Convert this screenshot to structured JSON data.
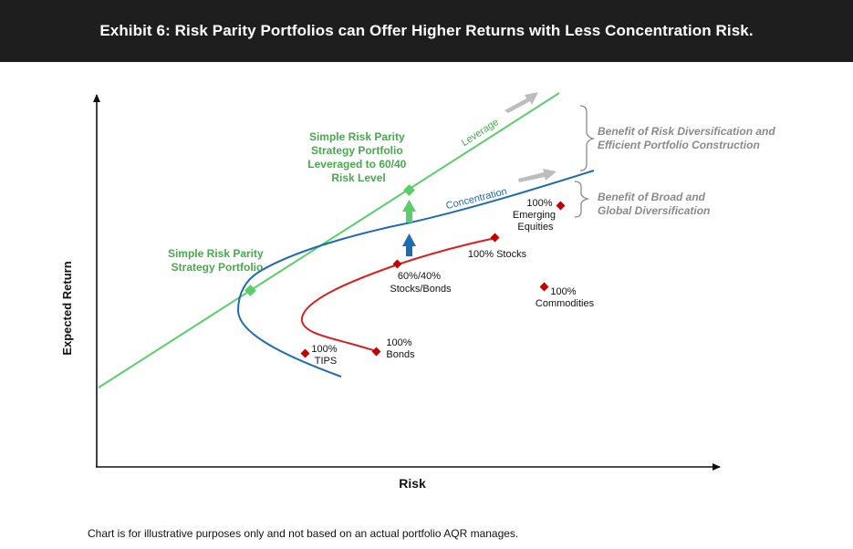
{
  "header": {
    "title": "Exhibit 6: Risk Parity Portfolios can Offer Higher Returns with Less Concentration Risk."
  },
  "footnote": "Chart is for illustrative purposes only and not based on an actual portfolio AQR manages.",
  "colors": {
    "header_bg": "#1e1e1e",
    "leverage_line": "#5ccd6b",
    "frontier": "#1f6bb0",
    "efficient_curve": "#d42121",
    "marker": "#c00000",
    "annotation": "#8a8a8a",
    "green_text": "#4aa84f"
  },
  "chart_data": {
    "type": "line",
    "xlabel": "Risk",
    "ylabel": "Expected Return",
    "grid": false,
    "legend": "none",
    "series": [
      {
        "name": "Leverage",
        "label": "Leverage"
      },
      {
        "name": "Concentration",
        "label": "Concentration"
      }
    ],
    "points": [
      {
        "label_lines": [
          "100%",
          "TIPS"
        ]
      },
      {
        "label_lines": [
          "100%",
          "Bonds"
        ]
      },
      {
        "label_lines": [
          "60%/40%",
          "Stocks/Bonds"
        ]
      },
      {
        "label_lines": [
          "100% Stocks"
        ]
      },
      {
        "label_lines": [
          "100%",
          "Emerging",
          "Equities"
        ]
      },
      {
        "label_lines": [
          "100%",
          "Commodities"
        ]
      }
    ],
    "green_labels": {
      "risk_parity": [
        "Simple Risk Parity",
        "Strategy Portfolio"
      ],
      "levered": [
        "Simple Risk Parity",
        "Strategy Portfolio",
        "Leveraged to 60/40",
        "Risk Level"
      ]
    },
    "brackets": [
      {
        "lines": [
          "Benefit of Risk Diversification and",
          "Efficient Portfolio Construction"
        ]
      },
      {
        "lines": [
          "Benefit of Broad and",
          "Global Diversification"
        ]
      }
    ]
  }
}
